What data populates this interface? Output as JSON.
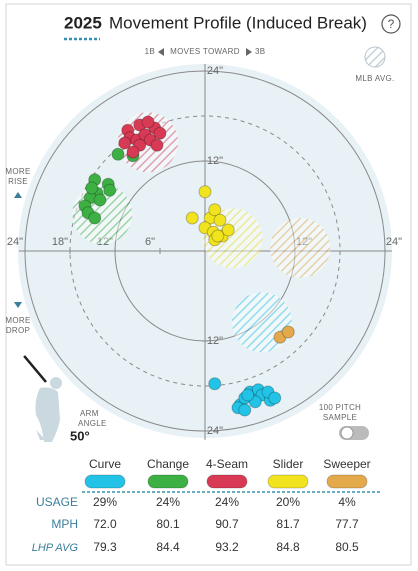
{
  "title_year": "2025",
  "title": "Movement Profile (Induced Break)",
  "help": "?",
  "chart_data": {
    "type": "scatter",
    "direction": {
      "left": "1B",
      "label": "MOVES TOWARD",
      "right": "3B"
    },
    "mlb_avg_label": "MLB AVG.",
    "rise_label": [
      "MORE",
      "RISE"
    ],
    "drop_label": [
      "MORE",
      "DROP"
    ],
    "arm_angle_text": [
      "ARM",
      "ANGLE"
    ],
    "arm_angle": {
      "value": 50,
      "label": "50°"
    },
    "sample_label": [
      "100 PITCH",
      "SAMPLE"
    ],
    "xlim": [
      -24,
      24
    ],
    "ylim": [
      -24,
      24
    ],
    "xticks": [
      {
        "value": -24,
        "label": "24\""
      },
      {
        "value": -18,
        "label": "18\""
      },
      {
        "value": -12,
        "label": "12\""
      },
      {
        "value": -6,
        "label": "6\""
      },
      {
        "value": 12,
        "label": "12\""
      },
      {
        "value": 24,
        "label": "24\""
      }
    ],
    "yticks": [
      {
        "value": 24,
        "label": "24\""
      },
      {
        "value": 12,
        "label": "12\""
      },
      {
        "value": -12,
        "label": "12\""
      },
      {
        "value": -24,
        "label": "24\""
      }
    ],
    "series": [
      {
        "name": "Curve",
        "color": "#22c3e6",
        "x": [
          1.3,
          4.7,
          5.3,
          6.0,
          7.1,
          7.6,
          8.7,
          8.4,
          6.7,
          4.4,
          5.3,
          9.3,
          5.7
        ],
        "y": [
          -17.7,
          -20.5,
          -19.6,
          -18.8,
          -18.5,
          -19.2,
          -19.9,
          -18.8,
          -20.1,
          -20.9,
          -21.2,
          -19.6,
          -19.2
        ],
        "mlb_avg": {
          "x": 7.6,
          "y": -9.5
        }
      },
      {
        "name": "Change",
        "color": "#3cb043",
        "x": [
          -11.6,
          -9.6,
          -14.7,
          -14.4,
          -12.9,
          -12.7,
          -15.3,
          -16.0,
          -14.0,
          -15.6,
          -14.7,
          -15.1
        ],
        "y": [
          12.9,
          12.7,
          9.5,
          7.7,
          8.9,
          8.1,
          7.1,
          6.0,
          6.8,
          5.1,
          4.4,
          8.4
        ],
        "mlb_avg": {
          "x": -13.7,
          "y": 4.9
        }
      },
      {
        "name": "4-Seam",
        "color": "#d83a55",
        "x": [
          -10.3,
          -8.7,
          -6.7,
          -10.0,
          -9.1,
          -8.0,
          -7.3,
          -6.0,
          -10.7,
          -8.7,
          -6.4,
          -9.6,
          -7.6
        ],
        "y": [
          16.1,
          16.8,
          16.4,
          15.1,
          14.8,
          15.5,
          14.8,
          15.7,
          14.4,
          14.1,
          14.1,
          13.2,
          17.2
        ],
        "mlb_avg": {
          "x": -7.6,
          "y": 14.5
        }
      },
      {
        "name": "Slider",
        "color": "#f2e31f",
        "x": [
          0,
          -1.7,
          0.7,
          1.3,
          2.0,
          0,
          1.1,
          2.3,
          1.3,
          3.1,
          1.7
        ],
        "y": [
          7.9,
          4.4,
          4.4,
          5.5,
          4.1,
          3.1,
          2.5,
          2.0,
          1.5,
          2.8,
          2.0
        ],
        "mlb_avg": {
          "x": 3.7,
          "y": 1.7
        }
      },
      {
        "name": "Sweeper",
        "color": "#e3a94b",
        "x": [
          10.0,
          11.1
        ],
        "y": [
          -11.5,
          -10.8
        ],
        "mlb_avg": {
          "x": 12.7,
          "y": 0.4
        }
      }
    ]
  },
  "table": {
    "rows": [
      {
        "label": "USAGE",
        "cells": [
          "29%",
          "24%",
          "24%",
          "20%",
          "4%"
        ]
      },
      {
        "label": "MPH",
        "cells": [
          "72.0",
          "80.1",
          "90.7",
          "81.7",
          "77.7"
        ]
      },
      {
        "label": "LHP AVG",
        "cells": [
          "79.3",
          "84.4",
          "93.2",
          "84.8",
          "80.5"
        ]
      }
    ]
  }
}
